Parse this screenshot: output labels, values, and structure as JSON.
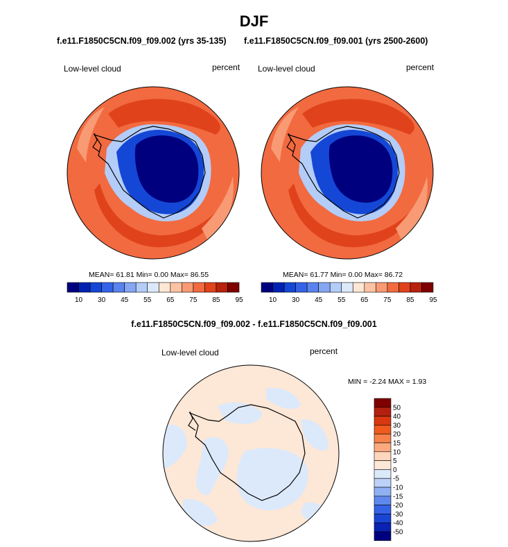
{
  "title": "DJF",
  "panels": [
    {
      "case_label": "f.e11.F1850C5CN.f09_f09.002 (yrs 35-135)",
      "field_label": "Low-level cloud",
      "units_label": "percent",
      "stats_text": "MEAN=  61.81  Min=   0.00  Max=  86.55"
    },
    {
      "case_label": "f.e11.F1850C5CN.f09_f09.001 (yrs 2500-2600)",
      "field_label": "Low-level cloud",
      "units_label": "percent",
      "stats_text": "MEAN=  61.77  Min=   0.00  Max=  86.72"
    }
  ],
  "colorbar_abs": {
    "colors": [
      "#00007f",
      "#0022b3",
      "#1547d6",
      "#3563e8",
      "#5a83ee",
      "#84a6f3",
      "#b3ccf8",
      "#dce9fb",
      "#fde6d4",
      "#fbc3a4",
      "#f89a73",
      "#f26a40",
      "#e0431c",
      "#b8210c",
      "#7f0000"
    ],
    "tick_labels": [
      "10",
      "30",
      "45",
      "55",
      "65",
      "75",
      "85",
      "95"
    ]
  },
  "diff_panel": {
    "case_label": "f.e11.F1850C5CN.f09_f09.002 - f.e11.F1850C5CN.f09_f09.001",
    "field_label": "Low-level cloud",
    "units_label": "percent",
    "minmax_text": "MIN =  -2.24 MAX =   1.93"
  },
  "colorbar_diff": {
    "colors": [
      "#7f0000",
      "#b3200f",
      "#d9370f",
      "#f05a1e",
      "#f7824a",
      "#fbaa80",
      "#fdd6bc",
      "#fde7d6",
      "#dce9fb",
      "#bcd2f8",
      "#8fb1f3",
      "#5e88ec",
      "#3563e8",
      "#1a45d4",
      "#0a22b3",
      "#00007f"
    ],
    "tick_labels": [
      "50",
      "40",
      "30",
      "20",
      "15",
      "10",
      "5",
      "0",
      "-5",
      "-10",
      "-15",
      "-20",
      "-30",
      "-40",
      "-50"
    ]
  },
  "map_colors": {
    "ice_dark": "#00007f",
    "ice_mid": "#1547d6",
    "ice_light": "#b3ccf8",
    "ocean_base": "#f26a40",
    "ocean_dark": "#e0431c",
    "ocean_light": "#f89a73",
    "diff_pos": "#fde7d6",
    "diff_neg": "#dce9fb"
  }
}
